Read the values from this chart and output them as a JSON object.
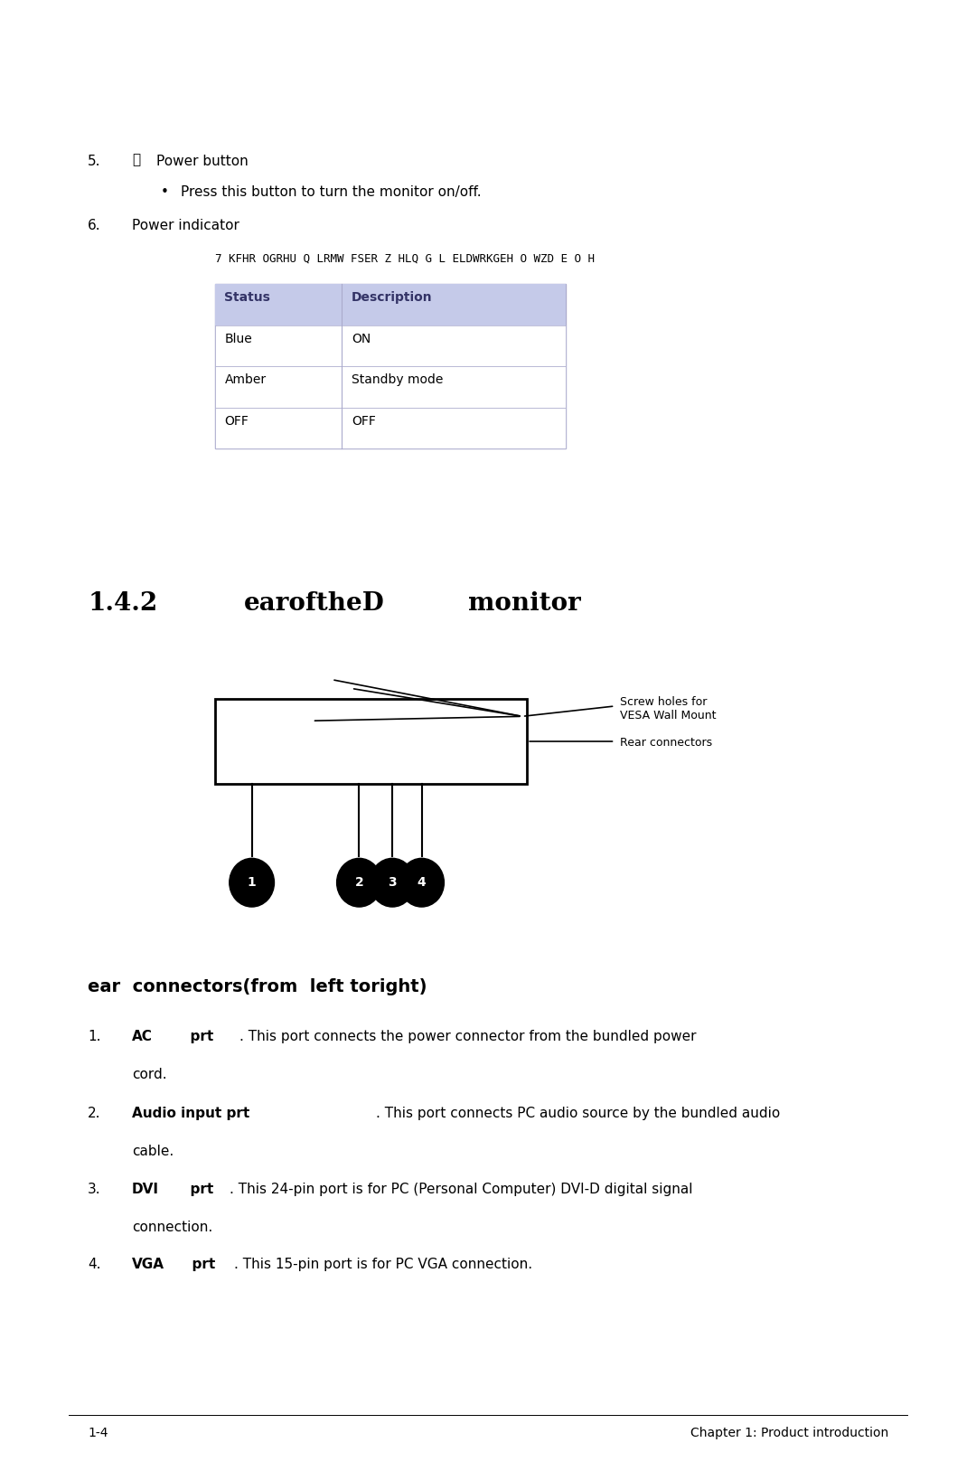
{
  "bg_color": "#ffffff",
  "indicator_desc_text": "7 KFHR OGRHU Q LRMW FSER Z HLQ G L ELDWRKGEH O WZD E O H",
  "table_header": [
    "Status",
    "Description"
  ],
  "table_header_color": "#c5cae9",
  "table_rows": [
    [
      "Blue",
      "ON"
    ],
    [
      "Amber",
      "Standby mode"
    ],
    [
      "OFF",
      "OFF"
    ]
  ],
  "label_screw": "Screw holes for\nVESA Wall Mount",
  "label_rear": "Rear connectors",
  "footer_left": "1-4",
  "footer_right": "Chapter 1: Product introduction"
}
